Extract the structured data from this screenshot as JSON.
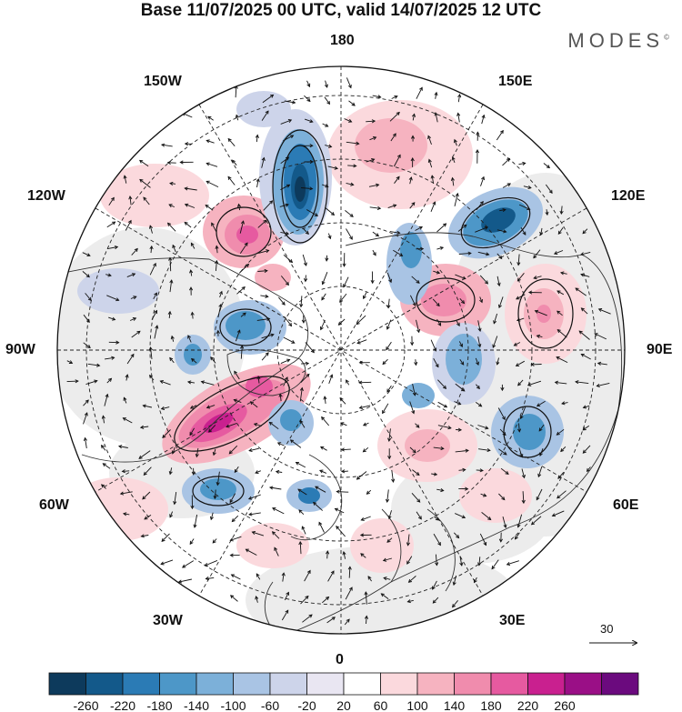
{
  "title": "Base 11/07/2025 00 UTC, valid 14/07/2025 12 UTC",
  "brand": "MODES",
  "brand_mark": "©",
  "lon_labels": {
    "top": "180",
    "bottom": "0",
    "left": "90W",
    "right": "90E",
    "l150w": "150W",
    "l150e": "150E",
    "l120w": "120W",
    "l120e": "120E",
    "l60w": "60W",
    "l60e": "60E",
    "l30w": "30W",
    "l30e": "30E"
  },
  "reference_vector": {
    "label": "30"
  },
  "colorbar": {
    "tick_labels": [
      "-260",
      "-220",
      "-180",
      "-140",
      "-100",
      "-60",
      "-20",
      "20",
      "60",
      "100",
      "140",
      "180",
      "220",
      "260"
    ],
    "colors": [
      "#0d3a5c",
      "#13598a",
      "#2b7bb5",
      "#4d97c8",
      "#7cb0d9",
      "#a9c4e4",
      "#cdd4ea",
      "#e9e6f2",
      "#ffffff",
      "#fbd9dd",
      "#f6b3c0",
      "#f08cad",
      "#e65aa0",
      "#c9208f",
      "#9a0f86",
      "#6b0a7e"
    ]
  },
  "anomaly_colors": {
    "neutral_gray": "#ececec",
    "land_outline": "#333333"
  }
}
